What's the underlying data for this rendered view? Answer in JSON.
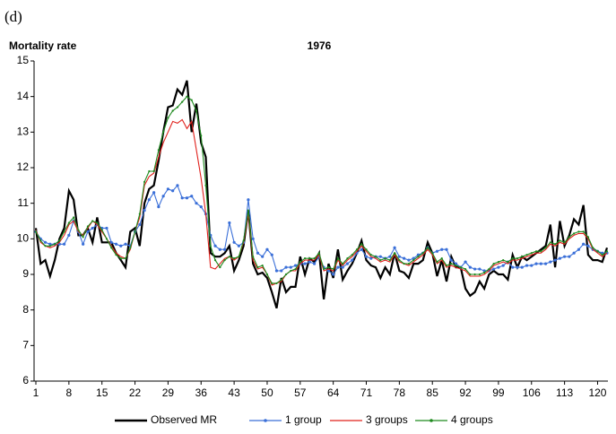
{
  "label": "(d)",
  "chart_data": {
    "type": "line",
    "title": "1976",
    "y_label": "Mortality rate",
    "x": [
      1,
      2,
      3,
      4,
      5,
      6,
      7,
      8,
      9,
      10,
      11,
      12,
      13,
      14,
      15,
      16,
      17,
      18,
      19,
      20,
      21,
      22,
      23,
      24,
      25,
      26,
      27,
      28,
      29,
      30,
      31,
      32,
      33,
      34,
      35,
      36,
      37,
      38,
      39,
      40,
      41,
      42,
      43,
      44,
      45,
      46,
      47,
      48,
      49,
      50,
      51,
      52,
      53,
      54,
      55,
      56,
      57,
      58,
      59,
      60,
      61,
      62,
      63,
      64,
      65,
      66,
      67,
      68,
      69,
      70,
      71,
      72,
      73,
      74,
      75,
      76,
      77,
      78,
      79,
      80,
      81,
      82,
      83,
      84,
      85,
      86,
      87,
      88,
      89,
      90,
      91,
      92,
      93,
      94,
      95,
      96,
      97,
      98,
      99,
      100,
      101,
      102,
      103,
      104,
      105,
      106,
      107,
      108,
      109,
      110,
      111,
      112,
      113,
      114,
      115,
      116,
      117,
      118,
      119,
      120,
      121,
      122
    ],
    "xlim": [
      1,
      122
    ],
    "xticks": [
      1,
      8,
      15,
      22,
      29,
      36,
      43,
      50,
      57,
      64,
      71,
      78,
      85,
      92,
      99,
      106,
      113,
      120
    ],
    "ylim": [
      6,
      15
    ],
    "yticks": [
      6,
      7,
      8,
      9,
      10,
      11,
      12,
      13,
      14,
      15
    ],
    "series": [
      {
        "name": "Observed MR",
        "color": "#000000",
        "values": [
          10.3,
          9.3,
          9.4,
          8.95,
          9.4,
          10.0,
          10.3,
          11.35,
          11.1,
          10.1,
          10.1,
          10.3,
          9.9,
          10.6,
          9.9,
          9.9,
          9.9,
          9.6,
          9.4,
          9.2,
          10.2,
          10.3,
          9.8,
          11.0,
          11.4,
          11.5,
          12.2,
          13.0,
          13.7,
          13.75,
          14.2,
          14.05,
          14.45,
          13.0,
          13.8,
          12.7,
          12.3,
          9.6,
          9.5,
          9.5,
          9.6,
          9.8,
          9.1,
          9.4,
          9.8,
          10.8,
          9.3,
          9.0,
          9.05,
          8.9,
          8.5,
          8.05,
          8.9,
          8.5,
          8.65,
          8.65,
          9.5,
          9.0,
          9.45,
          9.35,
          9.6,
          8.3,
          9.3,
          8.9,
          9.7,
          8.85,
          9.1,
          9.3,
          9.6,
          9.95,
          9.4,
          9.25,
          9.2,
          8.9,
          9.2,
          9.0,
          9.6,
          9.1,
          9.05,
          8.9,
          9.3,
          9.3,
          9.4,
          9.9,
          9.6,
          8.95,
          9.4,
          8.8,
          9.5,
          9.2,
          9.2,
          8.6,
          8.4,
          8.5,
          8.8,
          8.6,
          9.0,
          9.1,
          9.0,
          9.0,
          8.85,
          9.55,
          9.2,
          9.5,
          9.4,
          9.5,
          9.6,
          9.7,
          9.8,
          10.4,
          9.2,
          10.5,
          9.8,
          10.1,
          10.55,
          10.4,
          10.95,
          9.55,
          9.4,
          9.4,
          9.35,
          9.75
        ]
      },
      {
        "name": "1 group",
        "color": "#3a6fd8",
        "values": [
          10.2,
          10.0,
          9.9,
          9.85,
          9.85,
          9.85,
          9.85,
          10.1,
          10.5,
          10.2,
          9.85,
          10.2,
          10.3,
          10.4,
          10.3,
          10.3,
          9.9,
          9.85,
          9.8,
          9.85,
          9.8,
          10.2,
          10.4,
          10.8,
          11.1,
          11.3,
          10.9,
          11.2,
          11.4,
          11.35,
          11.5,
          11.15,
          11.15,
          11.2,
          11.0,
          10.9,
          10.7,
          10.1,
          9.8,
          9.7,
          9.7,
          10.45,
          9.9,
          9.8,
          9.9,
          11.1,
          10.0,
          9.6,
          9.5,
          9.7,
          9.55,
          9.1,
          9.1,
          9.2,
          9.2,
          9.25,
          9.3,
          9.3,
          9.35,
          9.3,
          9.5,
          9.2,
          9.1,
          9.0,
          9.2,
          9.2,
          9.3,
          9.4,
          9.6,
          9.7,
          9.5,
          9.45,
          9.5,
          9.5,
          9.45,
          9.5,
          9.75,
          9.5,
          9.45,
          9.4,
          9.45,
          9.55,
          9.6,
          9.75,
          9.6,
          9.65,
          9.7,
          9.7,
          9.4,
          9.3,
          9.2,
          9.35,
          9.2,
          9.15,
          9.15,
          9.1,
          9.1,
          9.15,
          9.2,
          9.25,
          9.35,
          9.2,
          9.2,
          9.2,
          9.25,
          9.25,
          9.3,
          9.3,
          9.3,
          9.35,
          9.4,
          9.45,
          9.5,
          9.5,
          9.6,
          9.7,
          9.85,
          9.8,
          9.7,
          9.65,
          9.6,
          9.6
        ]
      },
      {
        "name": "3 groups",
        "color": "#e0201b",
        "values": [
          10.25,
          9.9,
          9.8,
          9.75,
          9.8,
          9.9,
          10.1,
          10.4,
          10.5,
          10.2,
          10.1,
          10.3,
          10.5,
          10.4,
          10.2,
          10.0,
          9.8,
          9.6,
          9.5,
          9.45,
          9.7,
          10.2,
          10.6,
          11.5,
          11.75,
          11.85,
          12.3,
          12.7,
          13.0,
          13.3,
          13.25,
          13.35,
          13.1,
          13.3,
          12.5,
          11.7,
          10.7,
          9.2,
          9.15,
          9.3,
          9.45,
          9.5,
          9.4,
          9.5,
          9.9,
          10.7,
          9.4,
          9.15,
          9.2,
          9.0,
          8.7,
          8.75,
          8.8,
          9.0,
          9.1,
          9.1,
          9.3,
          9.4,
          9.4,
          9.4,
          9.55,
          9.1,
          9.15,
          9.1,
          9.4,
          9.25,
          9.4,
          9.5,
          9.65,
          9.8,
          9.65,
          9.5,
          9.45,
          9.35,
          9.4,
          9.35,
          9.55,
          9.35,
          9.3,
          9.25,
          9.35,
          9.45,
          9.55,
          9.7,
          9.55,
          9.3,
          9.4,
          9.2,
          9.25,
          9.2,
          9.15,
          9.1,
          8.95,
          8.95,
          8.95,
          9.0,
          9.1,
          9.25,
          9.3,
          9.35,
          9.3,
          9.4,
          9.4,
          9.45,
          9.5,
          9.55,
          9.6,
          9.6,
          9.7,
          9.85,
          9.8,
          9.9,
          9.85,
          10.0,
          10.1,
          10.15,
          10.15,
          10.0,
          9.7,
          9.6,
          9.5,
          9.6
        ]
      },
      {
        "name": "4 groups",
        "color": "#1f8a1f",
        "values": [
          10.2,
          9.95,
          9.8,
          9.8,
          9.85,
          9.95,
          10.2,
          10.45,
          10.6,
          10.25,
          10.05,
          10.35,
          10.5,
          10.45,
          10.25,
          10.0,
          9.75,
          9.55,
          9.45,
          9.45,
          9.75,
          10.2,
          10.7,
          11.6,
          11.9,
          11.9,
          12.5,
          13.0,
          13.4,
          13.6,
          13.7,
          13.85,
          14.0,
          13.9,
          13.6,
          12.9,
          11.5,
          9.8,
          9.4,
          9.2,
          9.4,
          9.5,
          9.45,
          9.5,
          9.95,
          10.8,
          9.5,
          9.2,
          9.25,
          9.0,
          8.75,
          8.75,
          8.85,
          9.0,
          9.1,
          9.15,
          9.35,
          9.45,
          9.45,
          9.45,
          9.6,
          9.15,
          9.2,
          9.15,
          9.45,
          9.3,
          9.45,
          9.55,
          9.7,
          9.85,
          9.7,
          9.55,
          9.5,
          9.4,
          9.45,
          9.4,
          9.6,
          9.4,
          9.3,
          9.3,
          9.4,
          9.5,
          9.6,
          9.75,
          9.6,
          9.35,
          9.45,
          9.25,
          9.3,
          9.25,
          9.2,
          9.15,
          9.0,
          9.0,
          9.0,
          9.05,
          9.15,
          9.3,
          9.35,
          9.4,
          9.35,
          9.45,
          9.45,
          9.5,
          9.55,
          9.6,
          9.65,
          9.65,
          9.75,
          9.9,
          9.85,
          9.95,
          9.9,
          10.05,
          10.15,
          10.2,
          10.2,
          10.05,
          9.75,
          9.65,
          9.55,
          9.65
        ]
      }
    ]
  }
}
